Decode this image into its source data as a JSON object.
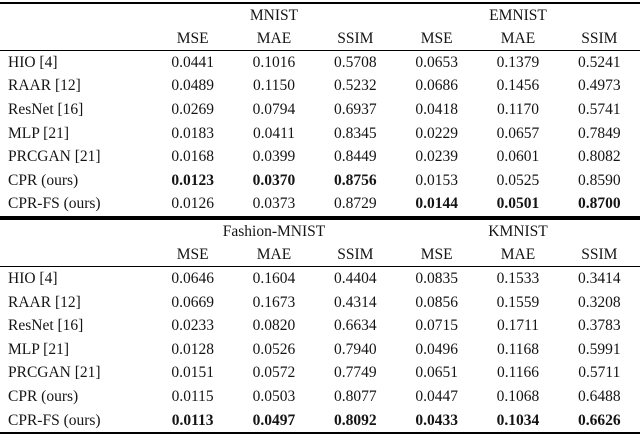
{
  "page": {
    "background": "#ffffff",
    "text_color": "#141414",
    "rule_color": "#000000"
  },
  "tables": [
    {
      "name": "mnist-emnist-results",
      "groups": [
        {
          "label": "MNIST"
        },
        {
          "label": "EMNIST"
        }
      ],
      "metrics": [
        "MSE",
        "MAE",
        "SSIM",
        "MSE",
        "MAE",
        "SSIM"
      ],
      "rows": [
        {
          "method": "HIO [4]",
          "values": [
            "0.0441",
            "0.1016",
            "0.5708",
            "0.0653",
            "0.1379",
            "0.5241"
          ],
          "bold": [
            false,
            false,
            false,
            false,
            false,
            false
          ]
        },
        {
          "method": "RAAR [12]",
          "values": [
            "0.0489",
            "0.1150",
            "0.5232",
            "0.0686",
            "0.1456",
            "0.4973"
          ],
          "bold": [
            false,
            false,
            false,
            false,
            false,
            false
          ]
        },
        {
          "method": "ResNet [16]",
          "values": [
            "0.0269",
            "0.0794",
            "0.6937",
            "0.0418",
            "0.1170",
            "0.5741"
          ],
          "bold": [
            false,
            false,
            false,
            false,
            false,
            false
          ]
        },
        {
          "method": "MLP [21]",
          "values": [
            "0.0183",
            "0.0411",
            "0.8345",
            "0.0229",
            "0.0657",
            "0.7849"
          ],
          "bold": [
            false,
            false,
            false,
            false,
            false,
            false
          ]
        },
        {
          "method": "PRCGAN [21]",
          "values": [
            "0.0168",
            "0.0399",
            "0.8449",
            "0.0239",
            "0.0601",
            "0.8082"
          ],
          "bold": [
            false,
            false,
            false,
            false,
            false,
            false
          ]
        },
        {
          "method": "CPR (ours)",
          "values": [
            "0.0123",
            "0.0370",
            "0.8756",
            "0.0153",
            "0.0525",
            "0.8590"
          ],
          "bold": [
            true,
            true,
            true,
            false,
            false,
            false
          ]
        },
        {
          "method": "CPR-FS (ours)",
          "values": [
            "0.0126",
            "0.0373",
            "0.8729",
            "0.0144",
            "0.0501",
            "0.8700"
          ],
          "bold": [
            false,
            false,
            false,
            true,
            true,
            true
          ]
        }
      ]
    },
    {
      "name": "fashion-kmnist-results",
      "groups": [
        {
          "label": "Fashion-MNIST"
        },
        {
          "label": "KMNIST"
        }
      ],
      "metrics": [
        "MSE",
        "MAE",
        "SSIM",
        "MSE",
        "MAE",
        "SSIM"
      ],
      "rows": [
        {
          "method": "HIO [4]",
          "values": [
            "0.0646",
            "0.1604",
            "0.4404",
            "0.0835",
            "0.1533",
            "0.3414"
          ],
          "bold": [
            false,
            false,
            false,
            false,
            false,
            false
          ]
        },
        {
          "method": "RAAR [12]",
          "values": [
            "0.0669",
            "0.1673",
            "0.4314",
            "0.0856",
            "0.1559",
            "0.3208"
          ],
          "bold": [
            false,
            false,
            false,
            false,
            false,
            false
          ]
        },
        {
          "method": "ResNet [16]",
          "values": [
            "0.0233",
            "0.0820",
            "0.6634",
            "0.0715",
            "0.1711",
            "0.3783"
          ],
          "bold": [
            false,
            false,
            false,
            false,
            false,
            false
          ]
        },
        {
          "method": "MLP [21]",
          "values": [
            "0.0128",
            "0.0526",
            "0.7940",
            "0.0496",
            "0.1168",
            "0.5991"
          ],
          "bold": [
            false,
            false,
            false,
            false,
            false,
            false
          ]
        },
        {
          "method": "PRCGAN [21]",
          "values": [
            "0.0151",
            "0.0572",
            "0.7749",
            "0.0651",
            "0.1166",
            "0.5711"
          ],
          "bold": [
            false,
            false,
            false,
            false,
            false,
            false
          ]
        },
        {
          "method": "CPR (ours)",
          "values": [
            "0.0115",
            "0.0503",
            "0.8077",
            "0.0447",
            "0.1068",
            "0.6488"
          ],
          "bold": [
            false,
            false,
            false,
            false,
            false,
            false
          ]
        },
        {
          "method": "CPR-FS (ours)",
          "values": [
            "0.0113",
            "0.0497",
            "0.8092",
            "0.0433",
            "0.1034",
            "0.6626"
          ],
          "bold": [
            true,
            true,
            true,
            true,
            true,
            true
          ]
        }
      ]
    }
  ]
}
